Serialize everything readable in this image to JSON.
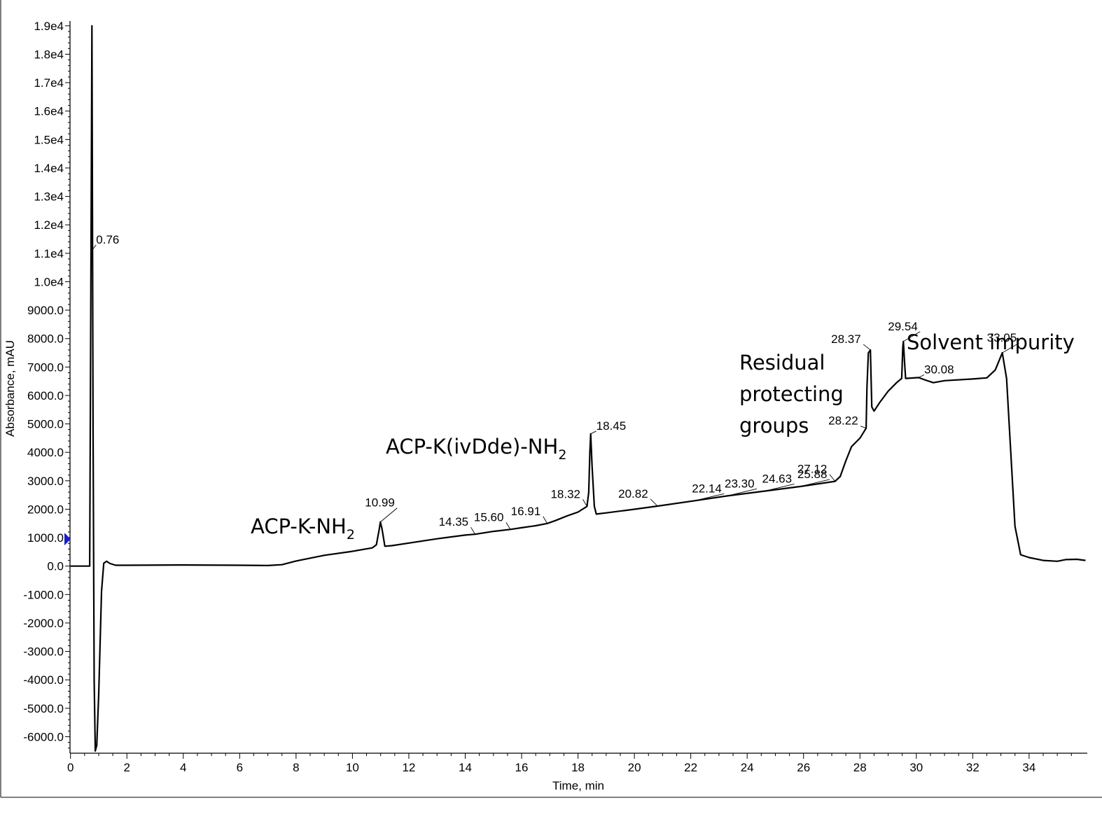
{
  "chart_data": {
    "type": "line",
    "title": "",
    "xlabel": "Time, min",
    "ylabel": "Absorbance, mAU",
    "xlim": [
      0,
      36
    ],
    "ylim": [
      -6500,
      19000
    ],
    "x_ticks": [
      0,
      2,
      4,
      6,
      8,
      10,
      12,
      14,
      16,
      18,
      20,
      22,
      24,
      26,
      28,
      30,
      32,
      34
    ],
    "y_ticks": [
      {
        "value": 19000,
        "label": "1.9e4"
      },
      {
        "value": 18000,
        "label": "1.8e4"
      },
      {
        "value": 17000,
        "label": "1.7e4"
      },
      {
        "value": 16000,
        "label": "1.6e4"
      },
      {
        "value": 15000,
        "label": "1.5e4"
      },
      {
        "value": 14000,
        "label": "1.4e4"
      },
      {
        "value": 13000,
        "label": "1.3e4"
      },
      {
        "value": 12000,
        "label": "1.2e4"
      },
      {
        "value": 11000,
        "label": "1.1e4"
      },
      {
        "value": 10000,
        "label": "1.0e4"
      },
      {
        "value": 9000,
        "label": "9000.0"
      },
      {
        "value": 8000,
        "label": "8000.0"
      },
      {
        "value": 7000,
        "label": "7000.0"
      },
      {
        "value": 6000,
        "label": "6000.0"
      },
      {
        "value": 5000,
        "label": "5000.0"
      },
      {
        "value": 4000,
        "label": "4000.0"
      },
      {
        "value": 3000,
        "label": "3000.0"
      },
      {
        "value": 2000,
        "label": "2000.0"
      },
      {
        "value": 1000,
        "label": "1000.0"
      },
      {
        "value": 0,
        "label": "0.0"
      },
      {
        "value": -1000,
        "label": "-1000.0"
      },
      {
        "value": -2000,
        "label": "-2000.0"
      },
      {
        "value": -3000,
        "label": "-3000.0"
      },
      {
        "value": -4000,
        "label": "-4000.0"
      },
      {
        "value": -5000,
        "label": "-5000.0"
      },
      {
        "value": -6000,
        "label": "-6000.0"
      }
    ],
    "baseline_marker_value": 950,
    "series": [
      {
        "points": [
          [
            0,
            0
          ],
          [
            0.68,
            0
          ],
          [
            0.7,
            4500
          ],
          [
            0.74,
            14000
          ],
          [
            0.76,
            19000
          ],
          [
            0.78,
            12000
          ],
          [
            0.8,
            5000
          ],
          [
            0.84,
            -4000
          ],
          [
            0.88,
            -6500
          ],
          [
            0.93,
            -6300
          ],
          [
            1.0,
            -4500
          ],
          [
            1.1,
            -900
          ],
          [
            1.18,
            100
          ],
          [
            1.28,
            170
          ],
          [
            1.4,
            90
          ],
          [
            1.6,
            30
          ],
          [
            2,
            30
          ],
          [
            4,
            40
          ],
          [
            6,
            30
          ],
          [
            7,
            20
          ],
          [
            7.5,
            50
          ],
          [
            8,
            180
          ],
          [
            9,
            380
          ],
          [
            10,
            520
          ],
          [
            10.7,
            640
          ],
          [
            10.85,
            750
          ],
          [
            10.95,
            1300
          ],
          [
            10.99,
            1550
          ],
          [
            11.05,
            1300
          ],
          [
            11.15,
            700
          ],
          [
            11.4,
            720
          ],
          [
            12,
            810
          ],
          [
            13,
            960
          ],
          [
            14,
            1090
          ],
          [
            14.35,
            1120
          ],
          [
            15,
            1220
          ],
          [
            15.6,
            1290
          ],
          [
            16,
            1350
          ],
          [
            16.5,
            1420
          ],
          [
            16.91,
            1500
          ],
          [
            17.2,
            1600
          ],
          [
            17.6,
            1760
          ],
          [
            18,
            1900
          ],
          [
            18.32,
            2100
          ],
          [
            18.38,
            2600
          ],
          [
            18.42,
            4000
          ],
          [
            18.45,
            4650
          ],
          [
            18.5,
            3500
          ],
          [
            18.58,
            2100
          ],
          [
            18.65,
            1830
          ],
          [
            19,
            1870
          ],
          [
            20,
            2000
          ],
          [
            20.82,
            2110
          ],
          [
            22.14,
            2300
          ],
          [
            23.3,
            2470
          ],
          [
            24.63,
            2640
          ],
          [
            25.88,
            2800
          ],
          [
            27.12,
            2980
          ],
          [
            27.3,
            3150
          ],
          [
            27.5,
            3700
          ],
          [
            27.7,
            4200
          ],
          [
            28.0,
            4500
          ],
          [
            28.22,
            4850
          ],
          [
            28.25,
            6300
          ],
          [
            28.3,
            7500
          ],
          [
            28.37,
            7600
          ],
          [
            28.42,
            5600
          ],
          [
            28.5,
            5450
          ],
          [
            28.7,
            5750
          ],
          [
            29.0,
            6150
          ],
          [
            29.3,
            6450
          ],
          [
            29.48,
            6600
          ],
          [
            29.52,
            7700
          ],
          [
            29.54,
            7900
          ],
          [
            29.58,
            7200
          ],
          [
            29.62,
            6600
          ],
          [
            30.08,
            6630
          ],
          [
            30.3,
            6550
          ],
          [
            30.6,
            6450
          ],
          [
            31,
            6520
          ],
          [
            32,
            6580
          ],
          [
            32.5,
            6620
          ],
          [
            32.8,
            6900
          ],
          [
            33.05,
            7500
          ],
          [
            33.2,
            6600
          ],
          [
            33.35,
            4000
          ],
          [
            33.5,
            1400
          ],
          [
            33.7,
            400
          ],
          [
            34,
            300
          ],
          [
            34.5,
            200
          ],
          [
            35,
            170
          ],
          [
            35.3,
            230
          ],
          [
            35.7,
            240
          ],
          [
            36,
            200
          ]
        ]
      }
    ],
    "peak_labels": [
      {
        "label": "0.76",
        "x": 0.76,
        "y": 11100
      },
      {
        "label": "10.99",
        "x": 10.99,
        "y": 1550
      },
      {
        "label": "14.35",
        "x": 14.35,
        "y": 1120
      },
      {
        "label": "15.60",
        "x": 15.6,
        "y": 1290
      },
      {
        "label": "16.91",
        "x": 16.91,
        "y": 1500
      },
      {
        "label": "18.32",
        "x": 18.32,
        "y": 2100
      },
      {
        "label": "18.45",
        "x": 18.45,
        "y": 4650
      },
      {
        "label": "20.82",
        "x": 20.82,
        "y": 2110
      },
      {
        "label": "22.14",
        "x": 22.14,
        "y": 2300
      },
      {
        "label": "23.30",
        "x": 23.3,
        "y": 2470
      },
      {
        "label": "24.63",
        "x": 24.63,
        "y": 2640
      },
      {
        "label": "25.88",
        "x": 25.88,
        "y": 2800
      },
      {
        "label": "27.12",
        "x": 27.12,
        "y": 2980
      },
      {
        "label": "28.22",
        "x": 28.22,
        "y": 4850
      },
      {
        "label": "28.37",
        "x": 28.37,
        "y": 7600
      },
      {
        "label": "29.54",
        "x": 29.54,
        "y": 7900
      },
      {
        "label": "30.08",
        "x": 30.08,
        "y": 6630
      },
      {
        "label": "33.05",
        "x": 33.05,
        "y": 7500
      }
    ],
    "annotations": [
      {
        "text": "ACP-K-NH",
        "sub": "2",
        "lines": [
          "ACP-K-NH"
        ]
      },
      {
        "text": "ACP-K(ivDde)-NH",
        "sub": "2",
        "lines": [
          "ACP-K(ivDde)-NH"
        ]
      },
      {
        "text": "Residual protecting groups",
        "lines": [
          "Residual",
          "protecting",
          "groups"
        ]
      },
      {
        "text": "Solvent impurity",
        "lines": [
          "Solvent impurity"
        ]
      }
    ],
    "colors": {
      "trace": "#000000",
      "axis": "#000000",
      "baseline_marker": "#1c1ccf"
    },
    "grid": false
  }
}
